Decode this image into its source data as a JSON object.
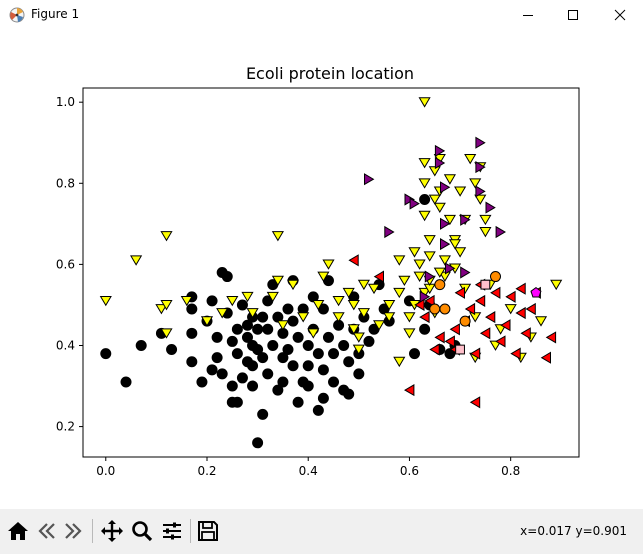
{
  "window": {
    "title": "Figure 1",
    "minimize_icon": "minimize-icon",
    "maximize_icon": "maximize-icon",
    "close_icon": "close-icon"
  },
  "toolbar": {
    "buttons": [
      {
        "name": "home-icon"
      },
      {
        "name": "back-arrow-icon"
      },
      {
        "name": "forward-arrow-icon"
      },
      {
        "name": "pan-icon"
      },
      {
        "name": "zoom-icon"
      },
      {
        "name": "configure-subplots-icon"
      },
      {
        "name": "save-icon"
      }
    ],
    "coords": "x=0.017 y=0.901"
  },
  "chart_data": {
    "type": "scatter",
    "title": "Ecoli protein location",
    "xlabel": "",
    "ylabel": "",
    "xlim": [
      -0.045,
      0.935
    ],
    "ylim": [
      0.125,
      1.035
    ],
    "xticks": [
      "0.0",
      "0.2",
      "0.4",
      "0.6",
      "0.8"
    ],
    "yticks": [
      "0.2",
      "0.4",
      "0.6",
      "0.8",
      "1.0"
    ],
    "grid": false,
    "legend": "none",
    "series": [
      {
        "marker": "circle",
        "color": "#000000",
        "points": [
          [
            0.0,
            0.38
          ],
          [
            0.04,
            0.31
          ],
          [
            0.07,
            0.4
          ],
          [
            0.11,
            0.43
          ],
          [
            0.13,
            0.39
          ],
          [
            0.17,
            0.43
          ],
          [
            0.17,
            0.49
          ],
          [
            0.17,
            0.52
          ],
          [
            0.17,
            0.36
          ],
          [
            0.19,
            0.31
          ],
          [
            0.2,
            0.46
          ],
          [
            0.21,
            0.51
          ],
          [
            0.21,
            0.34
          ],
          [
            0.22,
            0.42
          ],
          [
            0.22,
            0.37
          ],
          [
            0.23,
            0.58
          ],
          [
            0.24,
            0.57
          ],
          [
            0.23,
            0.33
          ],
          [
            0.24,
            0.48
          ],
          [
            0.25,
            0.41
          ],
          [
            0.25,
            0.3
          ],
          [
            0.25,
            0.26
          ],
          [
            0.26,
            0.44
          ],
          [
            0.26,
            0.38
          ],
          [
            0.26,
            0.26
          ],
          [
            0.27,
            0.5
          ],
          [
            0.27,
            0.32
          ],
          [
            0.28,
            0.45
          ],
          [
            0.28,
            0.42
          ],
          [
            0.28,
            0.36
          ],
          [
            0.29,
            0.47
          ],
          [
            0.29,
            0.4
          ],
          [
            0.29,
            0.35
          ],
          [
            0.29,
            0.3
          ],
          [
            0.3,
            0.44
          ],
          [
            0.3,
            0.39
          ],
          [
            0.3,
            0.16
          ],
          [
            0.31,
            0.47
          ],
          [
            0.31,
            0.23
          ],
          [
            0.31,
            0.37
          ],
          [
            0.32,
            0.44
          ],
          [
            0.32,
            0.51
          ],
          [
            0.32,
            0.33
          ],
          [
            0.33,
            0.55
          ],
          [
            0.33,
            0.4
          ],
          [
            0.34,
            0.47
          ],
          [
            0.34,
            0.29
          ],
          [
            0.35,
            0.43
          ],
          [
            0.35,
            0.37
          ],
          [
            0.35,
            0.31
          ],
          [
            0.36,
            0.49
          ],
          [
            0.36,
            0.39
          ],
          [
            0.37,
            0.56
          ],
          [
            0.37,
            0.46
          ],
          [
            0.37,
            0.35
          ],
          [
            0.38,
            0.26
          ],
          [
            0.38,
            0.42
          ],
          [
            0.39,
            0.31
          ],
          [
            0.39,
            0.49
          ],
          [
            0.4,
            0.4
          ],
          [
            0.4,
            0.35
          ],
          [
            0.4,
            0.3
          ],
          [
            0.41,
            0.52
          ],
          [
            0.41,
            0.44
          ],
          [
            0.42,
            0.38
          ],
          [
            0.42,
            0.24
          ],
          [
            0.43,
            0.49
          ],
          [
            0.43,
            0.34
          ],
          [
            0.43,
            0.27
          ],
          [
            0.44,
            0.42
          ],
          [
            0.44,
            0.56
          ],
          [
            0.45,
            0.38
          ],
          [
            0.45,
            0.31
          ],
          [
            0.46,
            0.45
          ],
          [
            0.47,
            0.29
          ],
          [
            0.47,
            0.4
          ],
          [
            0.48,
            0.36
          ],
          [
            0.48,
            0.28
          ],
          [
            0.49,
            0.44
          ],
          [
            0.49,
            0.52
          ],
          [
            0.5,
            0.38
          ],
          [
            0.5,
            0.33
          ],
          [
            0.51,
            0.47
          ],
          [
            0.52,
            0.41
          ],
          [
            0.53,
            0.44
          ],
          [
            0.54,
            0.55
          ],
          [
            0.55,
            0.49
          ],
          [
            0.56,
            0.46
          ],
          [
            0.6,
            0.51
          ],
          [
            0.61,
            0.38
          ],
          [
            0.63,
            0.76
          ],
          [
            0.66,
            0.39
          ],
          [
            0.68,
            0.38
          ],
          [
            0.69,
            0.4
          ],
          [
            0.63,
            0.44
          ],
          [
            0.64,
            0.5
          ]
        ]
      },
      {
        "marker": "triangle-down",
        "color": "#ffff00",
        "points": [
          [
            0.0,
            0.51
          ],
          [
            0.06,
            0.61
          ],
          [
            0.11,
            0.49
          ],
          [
            0.12,
            0.5
          ],
          [
            0.12,
            0.43
          ],
          [
            0.12,
            0.67
          ],
          [
            0.16,
            0.51
          ],
          [
            0.2,
            0.46
          ],
          [
            0.23,
            0.48
          ],
          [
            0.25,
            0.51
          ],
          [
            0.28,
            0.52
          ],
          [
            0.29,
            0.48
          ],
          [
            0.33,
            0.52
          ],
          [
            0.34,
            0.56
          ],
          [
            0.34,
            0.67
          ],
          [
            0.35,
            0.45
          ],
          [
            0.37,
            0.55
          ],
          [
            0.39,
            0.47
          ],
          [
            0.41,
            0.43
          ],
          [
            0.42,
            0.5
          ],
          [
            0.43,
            0.57
          ],
          [
            0.44,
            0.6
          ],
          [
            0.46,
            0.51
          ],
          [
            0.46,
            0.47
          ],
          [
            0.48,
            0.53
          ],
          [
            0.49,
            0.5
          ],
          [
            0.49,
            0.44
          ],
          [
            0.5,
            0.39
          ],
          [
            0.5,
            0.42
          ],
          [
            0.51,
            0.55
          ],
          [
            0.51,
            0.48
          ],
          [
            0.53,
            0.54
          ],
          [
            0.54,
            0.45
          ],
          [
            0.56,
            0.47
          ],
          [
            0.56,
            0.5
          ],
          [
            0.58,
            0.61
          ],
          [
            0.58,
            0.53
          ],
          [
            0.59,
            0.56
          ],
          [
            0.6,
            0.47
          ],
          [
            0.61,
            0.63
          ],
          [
            0.61,
            0.5
          ],
          [
            0.62,
            0.6
          ],
          [
            0.62,
            0.57
          ],
          [
            0.63,
            0.53
          ],
          [
            0.63,
            0.85
          ],
          [
            0.63,
            0.8
          ],
          [
            0.63,
            0.72
          ],
          [
            0.64,
            0.62
          ],
          [
            0.64,
            0.66
          ],
          [
            0.64,
            0.54
          ],
          [
            0.65,
            0.83
          ],
          [
            0.65,
            0.76
          ],
          [
            0.65,
            0.48
          ],
          [
            0.66,
            0.86
          ],
          [
            0.66,
            0.78
          ],
          [
            0.66,
            0.74
          ],
          [
            0.67,
            0.61
          ],
          [
            0.67,
            0.57
          ],
          [
            0.68,
            0.81
          ],
          [
            0.68,
            0.71
          ],
          [
            0.69,
            0.66
          ],
          [
            0.69,
            0.59
          ],
          [
            0.7,
            0.63
          ],
          [
            0.7,
            0.78
          ],
          [
            0.71,
            0.71
          ],
          [
            0.71,
            0.54
          ],
          [
            0.72,
            0.86
          ],
          [
            0.73,
            0.8
          ],
          [
            0.73,
            0.47
          ],
          [
            0.73,
            0.37
          ],
          [
            0.74,
            0.76
          ],
          [
            0.74,
            0.84
          ],
          [
            0.75,
            0.71
          ],
          [
            0.75,
            0.68
          ],
          [
            0.76,
            0.55
          ],
          [
            0.77,
            0.4
          ],
          [
            0.78,
            0.44
          ],
          [
            0.8,
            0.49
          ],
          [
            0.82,
            0.37
          ],
          [
            0.84,
            0.42
          ],
          [
            0.86,
            0.46
          ],
          [
            0.89,
            0.55
          ],
          [
            0.63,
            1.0
          ],
          [
            0.64,
            0.56
          ],
          [
            0.66,
            0.58
          ],
          [
            0.6,
            0.43
          ],
          [
            0.58,
            0.36
          ],
          [
            0.69,
            0.65
          ]
        ]
      },
      {
        "marker": "triangle-right",
        "color": "#800080",
        "points": [
          [
            0.52,
            0.81
          ],
          [
            0.56,
            0.68
          ],
          [
            0.6,
            0.76
          ],
          [
            0.61,
            0.75
          ],
          [
            0.66,
            0.88
          ],
          [
            0.66,
            0.85
          ],
          [
            0.67,
            0.79
          ],
          [
            0.67,
            0.7
          ],
          [
            0.67,
            0.65
          ],
          [
            0.71,
            0.71
          ],
          [
            0.74,
            0.9
          ],
          [
            0.74,
            0.84
          ],
          [
            0.74,
            0.78
          ],
          [
            0.76,
            0.74
          ],
          [
            0.78,
            0.68
          ],
          [
            0.68,
            0.59
          ],
          [
            0.71,
            0.58
          ],
          [
            0.64,
            0.57
          ],
          [
            0.63,
            0.52
          ]
        ]
      },
      {
        "marker": "triangle-left",
        "color": "#ff0000",
        "points": [
          [
            0.49,
            0.61
          ],
          [
            0.54,
            0.57
          ],
          [
            0.6,
            0.29
          ],
          [
            0.62,
            0.5
          ],
          [
            0.63,
            0.47
          ],
          [
            0.64,
            0.51
          ],
          [
            0.66,
            0.42
          ],
          [
            0.68,
            0.41
          ],
          [
            0.69,
            0.44
          ],
          [
            0.7,
            0.53
          ],
          [
            0.71,
            0.46
          ],
          [
            0.72,
            0.49
          ],
          [
            0.73,
            0.38
          ],
          [
            0.74,
            0.55
          ],
          [
            0.74,
            0.51
          ],
          [
            0.75,
            0.43
          ],
          [
            0.76,
            0.47
          ],
          [
            0.77,
            0.53
          ],
          [
            0.78,
            0.41
          ],
          [
            0.79,
            0.45
          ],
          [
            0.8,
            0.52
          ],
          [
            0.81,
            0.38
          ],
          [
            0.82,
            0.54
          ],
          [
            0.82,
            0.48
          ],
          [
            0.83,
            0.43
          ],
          [
            0.84,
            0.49
          ],
          [
            0.85,
            0.53
          ],
          [
            0.87,
            0.37
          ],
          [
            0.88,
            0.42
          ],
          [
            0.73,
            0.26
          ],
          [
            0.69,
            0.39
          ],
          [
            0.65,
            0.39
          ]
        ]
      },
      {
        "marker": "circle",
        "color": "#ff8c00",
        "points": [
          [
            0.66,
            0.55
          ],
          [
            0.67,
            0.49
          ],
          [
            0.65,
            0.49
          ],
          [
            0.71,
            0.46
          ],
          [
            0.77,
            0.57
          ]
        ]
      },
      {
        "marker": "square",
        "color": "#ffc0cb",
        "points": [
          [
            0.7,
            0.39
          ],
          [
            0.75,
            0.55
          ]
        ]
      },
      {
        "marker": "pentagon",
        "color": "#ff00ff",
        "points": [
          [
            0.85,
            0.53
          ]
        ]
      }
    ]
  }
}
